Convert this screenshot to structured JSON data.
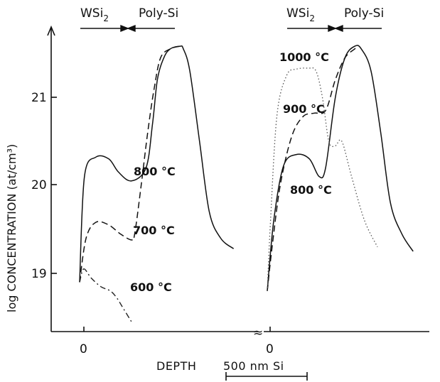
{
  "chart_data": {
    "type": "line",
    "xlabel": "DEPTH",
    "scale_bar_label": "500 nm Si",
    "ylabel": "log CONCENTRATION (at/cm³)",
    "ylim": [
      18.4,
      21.8
    ],
    "y_ticks": [
      "19",
      "20",
      "21"
    ],
    "x_tick_label": "0",
    "axis_break_symbol": "≈",
    "region_labels": {
      "left": "WSi",
      "left_sub": "2",
      "right": "Poly-Si"
    },
    "panels": [
      {
        "name": "left",
        "series": [
          {
            "name": "800 °C",
            "style": "solid",
            "x": [
              0,
              30,
              100,
              180,
              240,
              320,
              410,
              450,
              480,
              520,
              560,
              620,
              640,
              680,
              740,
              800,
              870,
              950
            ],
            "y": [
              18.9,
              20.1,
              20.32,
              20.3,
              20.15,
              20.05,
              20.2,
              20.7,
              21.2,
              21.45,
              21.55,
              21.58,
              21.55,
              21.3,
              20.5,
              19.7,
              19.4,
              19.28
            ]
          },
          {
            "name": "700 °C",
            "style": "dashed",
            "x": [
              0,
              40,
              100,
              180,
              250,
              320,
              340,
              380,
              420,
              460,
              500,
              560,
              620
            ],
            "y": [
              18.9,
              19.4,
              19.58,
              19.55,
              19.45,
              19.38,
              19.45,
              20.0,
              20.6,
              21.1,
              21.45,
              21.55,
              21.58
            ]
          },
          {
            "name": "600 °C",
            "style": "dash-dot",
            "x": [
              0,
              25,
              70,
              130,
              190,
              230,
              270,
              320
            ],
            "y": [
              18.9,
              19.05,
              18.95,
              18.85,
              18.8,
              18.72,
              18.6,
              18.45
            ]
          }
        ]
      },
      {
        "name": "right",
        "series": [
          {
            "name": "800 °C",
            "style": "solid",
            "x": [
              0,
              40,
              100,
              180,
              260,
              320,
              360,
              420,
              480,
              540,
              580,
              640,
              700,
              760,
              830,
              900
            ],
            "y": [
              18.8,
              19.6,
              20.22,
              20.35,
              20.3,
              20.1,
              20.2,
              21.0,
              21.45,
              21.58,
              21.55,
              21.3,
              20.6,
              19.8,
              19.45,
              19.25
            ]
          },
          {
            "name": "900 °C",
            "style": "dashed",
            "x": [
              0,
              30,
              80,
              150,
              220,
              290,
              360,
              420,
              480,
              540,
              560
            ],
            "y": [
              18.8,
              19.3,
              20.0,
              20.55,
              20.78,
              20.82,
              20.85,
              21.2,
              21.45,
              21.55,
              21.58
            ]
          },
          {
            "name": "1000 °C",
            "style": "dotted",
            "x": [
              0,
              20,
              60,
              120,
              180,
              250,
              300,
              340,
              380,
              420,
              460,
              520,
              600,
              680
            ],
            "y": [
              18.8,
              19.6,
              20.8,
              21.25,
              21.32,
              21.33,
              21.3,
              21.0,
              20.5,
              20.45,
              20.5,
              20.1,
              19.6,
              19.3
            ]
          }
        ]
      }
    ],
    "annotations": [
      "800 °C",
      "700 °C",
      "600 °C",
      "1000 °C",
      "900 °C",
      "800 °C"
    ],
    "legend": "none",
    "grid": false
  }
}
